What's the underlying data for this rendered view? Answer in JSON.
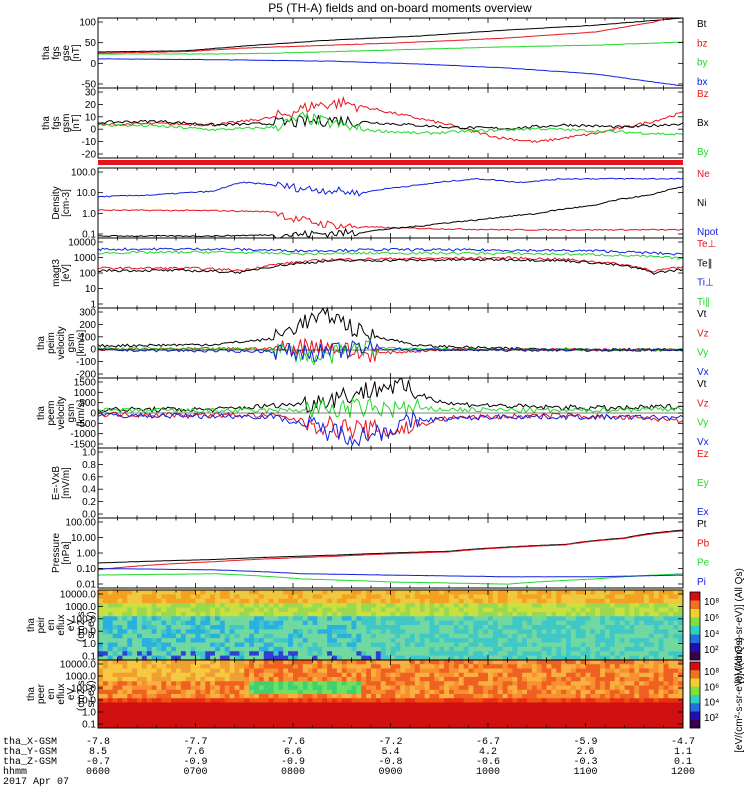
{
  "title": "P5 (TH-A) fields and on-board moments overview",
  "colors": {
    "black": "#000000",
    "red": "#e8141c",
    "green": "#22d82a",
    "blue": "#1020e0"
  },
  "chart_data": [
    {
      "type": "line",
      "id": "fgs_btot",
      "ylabel": [
        "tha",
        "fgs",
        "gse",
        "[nT]"
      ],
      "yticks": [
        "100",
        "50",
        "0",
        "-50"
      ],
      "ylim": [
        -75,
        100
      ],
      "series": [
        {
          "name": "Bt",
          "color": "black",
          "x": [
            0,
            0.15,
            0.25,
            0.4,
            0.55,
            0.7,
            0.85,
            1
          ],
          "y": [
            15,
            18,
            30,
            45,
            55,
            70,
            82,
            100
          ]
        },
        {
          "name": "bz",
          "color": "red",
          "x": [
            0,
            0.15,
            0.25,
            0.4,
            0.55,
            0.7,
            0.85,
            0.95,
            1
          ],
          "y": [
            12,
            16,
            25,
            32,
            40,
            50,
            65,
            90,
            108
          ]
        },
        {
          "name": "by",
          "color": "green",
          "x": [
            0,
            0.2,
            0.3,
            0.5,
            0.7,
            0.85,
            1
          ],
          "y": [
            10,
            10,
            12,
            20,
            28,
            32,
            40
          ]
        },
        {
          "name": "bx",
          "color": "blue",
          "x": [
            0,
            0.1,
            0.25,
            0.4,
            0.55,
            0.7,
            0.85,
            0.95,
            1
          ],
          "y": [
            -2,
            -3,
            -5,
            -8,
            -15,
            -25,
            -40,
            -60,
            -70
          ]
        }
      ]
    },
    {
      "type": "line",
      "id": "fgs_gsm",
      "ylabel": [
        "tha",
        "fgs",
        "gsm",
        "[nT]"
      ],
      "yticks": [
        "30",
        "20",
        "10",
        "0",
        "-10",
        "-20"
      ],
      "ylim": [
        -25,
        32
      ],
      "series": [
        {
          "name": "Bz",
          "color": "red",
          "x": [
            0,
            0.1,
            0.2,
            0.3,
            0.37,
            0.42,
            0.5,
            0.6,
            0.68,
            0.75,
            0.85,
            0.95,
            1
          ],
          "y": [
            2,
            3,
            2,
            8,
            18,
            20,
            12,
            2,
            -8,
            -12,
            -5,
            5,
            12
          ]
        },
        {
          "name": "Bx",
          "color": "black",
          "x": [
            0,
            0.1,
            0.2,
            0.3,
            0.4,
            0.5,
            0.6,
            0.7,
            0.8,
            0.9,
            1
          ],
          "y": [
            4,
            5,
            2,
            3,
            6,
            3,
            0,
            -1,
            2,
            0,
            3
          ]
        },
        {
          "name": "By",
          "color": "green",
          "x": [
            0,
            0.1,
            0.2,
            0.3,
            0.35,
            0.45,
            0.55,
            0.65,
            0.75,
            0.85,
            0.95,
            1
          ],
          "y": [
            2,
            1,
            -2,
            0,
            8,
            -2,
            -5,
            -3,
            -1,
            -3,
            -5,
            -6
          ]
        }
      ]
    },
    {
      "type": "line",
      "id": "density",
      "ylabel": [
        "Density",
        "[cm-3]"
      ],
      "yticks": [
        "100.0",
        "10.0",
        "1.0",
        "0.1"
      ],
      "ylim": [
        0.08,
        200
      ],
      "log": true,
      "series": [
        {
          "name": "Ne",
          "color": "red",
          "x": [
            0,
            0.2,
            0.3,
            0.33,
            0.38,
            0.42,
            0.5,
            0.6,
            0.7,
            0.8,
            0.9,
            1
          ],
          "y": [
            1.8,
            1.7,
            1.5,
            0.7,
            0.4,
            0.3,
            0.25,
            0.22,
            0.2,
            0.2,
            0.2,
            0.2
          ]
        },
        {
          "name": "Ni",
          "color": "black",
          "x": [
            0,
            0.2,
            0.35,
            0.45,
            0.55,
            0.65,
            0.75,
            0.85,
            0.95,
            1
          ],
          "y": [
            0.1,
            0.1,
            0.12,
            0.15,
            0.3,
            0.6,
            1.2,
            3,
            10,
            25
          ]
        },
        {
          "name": "Npot",
          "color": "blue",
          "x": [
            0,
            0.1,
            0.2,
            0.25,
            0.35,
            0.45,
            0.55,
            0.65,
            0.72,
            0.8
          ],
          "y": [
            8,
            10,
            15,
            40,
            20,
            12,
            30,
            60,
            40,
            60
          ]
        }
      ]
    },
    {
      "type": "line",
      "id": "temperature",
      "ylabel": [
        "magt3",
        "[eV]"
      ],
      "yticks": [
        "10000",
        "1000",
        "100",
        "10",
        "1"
      ],
      "ylim": [
        0.7,
        12000
      ],
      "log": true,
      "series": [
        {
          "name": "Te⊥",
          "color": "red",
          "x": [
            0,
            0.15,
            0.25,
            0.4,
            0.55,
            0.7,
            0.8,
            0.88,
            0.95,
            1
          ],
          "y": [
            180,
            180,
            130,
            600,
            700,
            750,
            600,
            350,
            120,
            200
          ]
        },
        {
          "name": "Te∥",
          "color": "black",
          "x": [
            0,
            0.15,
            0.25,
            0.4,
            0.55,
            0.7,
            0.8,
            0.88,
            0.95,
            1
          ],
          "y": [
            130,
            130,
            100,
            500,
            550,
            600,
            500,
            300,
            90,
            150
          ]
        },
        {
          "name": "Ti⊥",
          "color": "blue",
          "x": [
            0,
            0.2,
            0.35,
            0.5,
            0.7,
            0.85,
            1
          ],
          "y": [
            2500,
            2600,
            2000,
            2400,
            2200,
            2000,
            1200
          ]
        },
        {
          "name": "Ti∥",
          "color": "green",
          "x": [
            0,
            0.2,
            0.35,
            0.5,
            0.7,
            0.85,
            1
          ],
          "y": [
            1500,
            1700,
            1300,
            1500,
            1400,
            1200,
            700
          ]
        }
      ]
    },
    {
      "type": "line",
      "id": "ion_velocity",
      "ylabel": [
        "tha",
        "peim",
        "velocity",
        "gsm",
        "[km/s]"
      ],
      "yticks": [
        "300",
        "200",
        "100",
        "0",
        "-100",
        "-200"
      ],
      "ylim": [
        -200,
        300
      ],
      "series": [
        {
          "name": "Vt",
          "color": "black",
          "x": [
            0,
            0.2,
            0.3,
            0.35,
            0.4,
            0.45,
            0.55,
            0.7,
            1
          ],
          "y": [
            30,
            40,
            80,
            200,
            250,
            120,
            30,
            10,
            0
          ]
        },
        {
          "name": "Vz",
          "color": "red",
          "x": [
            0,
            0.3,
            0.38,
            0.45,
            0.6,
            1
          ],
          "y": [
            5,
            10,
            40,
            -30,
            5,
            0
          ]
        },
        {
          "name": "Vy",
          "color": "green",
          "x": [
            0,
            0.3,
            0.38,
            0.45,
            0.6,
            1
          ],
          "y": [
            10,
            5,
            -60,
            20,
            5,
            0
          ]
        },
        {
          "name": "Vx",
          "color": "blue",
          "x": [
            0,
            0.3,
            0.38,
            0.45,
            0.6,
            1
          ],
          "y": [
            0,
            -10,
            -20,
            10,
            0,
            0
          ]
        }
      ]
    },
    {
      "type": "line",
      "id": "electron_velocity",
      "ylabel": [
        "tha",
        "peem",
        "velocity",
        "gsm",
        "[km/s]"
      ],
      "yticks": [
        "1500",
        "1000",
        "500",
        "0",
        "-500",
        "-1000",
        "-1500"
      ],
      "ylim": [
        -1500,
        1500
      ],
      "series": [
        {
          "name": "Vt",
          "color": "black",
          "x": [
            0,
            0.2,
            0.35,
            0.45,
            0.5,
            0.6,
            0.75,
            0.9,
            1
          ],
          "y": [
            150,
            150,
            400,
            900,
            1200,
            400,
            250,
            200,
            300
          ]
        },
        {
          "name": "Vz",
          "color": "red",
          "x": [
            0,
            0.3,
            0.4,
            0.5,
            0.6,
            0.8,
            1
          ],
          "y": [
            -50,
            -100,
            -600,
            -800,
            -200,
            -100,
            -300
          ]
        },
        {
          "name": "Vy",
          "color": "green",
          "x": [
            0,
            0.3,
            0.45,
            0.6,
            0.8,
            1
          ],
          "y": [
            100,
            100,
            200,
            150,
            100,
            200
          ]
        },
        {
          "name": "Vx",
          "color": "blue",
          "x": [
            0,
            0.3,
            0.4,
            0.45,
            0.55,
            0.7,
            1
          ],
          "y": [
            -100,
            -150,
            -800,
            -1000,
            -300,
            -150,
            -200
          ]
        }
      ]
    },
    {
      "type": "line",
      "id": "efield",
      "ylabel": [
        "E=-VxB",
        "[mV/m]"
      ],
      "yticks": [
        "1.0",
        "0.8",
        "0.6",
        "0.4",
        "0.2",
        "0.0"
      ],
      "ylim": [
        0,
        1
      ],
      "series": [
        {
          "name": "Ez",
          "color": "red",
          "x": [],
          "y": []
        },
        {
          "name": "Ey",
          "color": "green",
          "x": [],
          "y": []
        },
        {
          "name": "Ex",
          "color": "blue",
          "x": [],
          "y": []
        }
      ]
    },
    {
      "type": "line",
      "id": "pressure",
      "ylabel": [
        "Pressure",
        "[nPa]"
      ],
      "yticks": [
        "100.00",
        "10.00",
        "1.00",
        "0.10",
        "0.01"
      ],
      "ylim": [
        0.009,
        100
      ],
      "log": true,
      "series": [
        {
          "name": "Pt",
          "color": "black",
          "x": [
            0,
            0.2,
            0.4,
            0.6,
            0.8,
            0.9,
            1
          ],
          "y": [
            0.25,
            0.4,
            0.7,
            1.2,
            3,
            7,
            20
          ]
        },
        {
          "name": "Pb",
          "color": "red",
          "x": [
            0,
            0.2,
            0.4,
            0.6,
            0.8,
            0.9,
            1
          ],
          "y": [
            0.1,
            0.3,
            0.6,
            1.1,
            2.8,
            6.5,
            18
          ]
        },
        {
          "name": "Pe",
          "color": "green",
          "x": [
            0,
            0.2,
            0.35,
            0.5,
            0.7,
            0.85,
            1
          ],
          "y": [
            0.05,
            0.06,
            0.03,
            0.02,
            0.015,
            0.03,
            0.06
          ]
        },
        {
          "name": "Pi",
          "color": "blue",
          "x": [
            0,
            0.2,
            0.35,
            0.5,
            0.7,
            0.85,
            1
          ],
          "y": [
            0.12,
            0.1,
            0.06,
            0.05,
            0.04,
            0.04,
            0.05
          ]
        }
      ]
    },
    {
      "type": "heatmap",
      "id": "ion_spectrogram",
      "ylabel": [
        "tha",
        "peir",
        "en",
        "eflux",
        "eV",
        "(cm2-s-",
        "sr-eV)"
      ],
      "yticks": [
        "10000.0",
        "1000.0",
        "100.0",
        "10.0",
        "1.0",
        "0.1"
      ]
    },
    {
      "type": "heatmap",
      "id": "electron_spectrogram",
      "ylabel": [
        "tha",
        "peer",
        "en",
        "eflux",
        "eV",
        "(cm2-s-",
        "sr-eV)"
      ],
      "yticks": [
        "10000.0",
        "1000.0",
        "100.0",
        "10.0",
        "1.0",
        "0.1"
      ]
    },
    {
      "type": "colorbar",
      "id": "colorbar_ion",
      "ticks": [
        "10⁸",
        "10⁶",
        "10⁴",
        "10²"
      ],
      "label": "[eV/(cm²-s-sr-eV)] (All Qs)"
    },
    {
      "type": "colorbar",
      "id": "colorbar_electron",
      "ticks": [
        "10⁸",
        "10⁶",
        "10⁴",
        "10²"
      ],
      "label": "[eV/(cm²-s-sr-eV)] (All Qs)"
    }
  ],
  "x_axis": {
    "rows": [
      {
        "label": "tha_X-GSM",
        "values": [
          "-7.8",
          "-7.7",
          "-7.6",
          "-7.2",
          "-6.7",
          "-5.9",
          "-4.7"
        ]
      },
      {
        "label": "tha_Y-GSM",
        "values": [
          "8.5",
          "7.6",
          "6.6",
          "5.4",
          "4.2",
          "2.6",
          "1.1"
        ]
      },
      {
        "label": "tha_Z-GSM",
        "values": [
          "-0.7",
          "-0.9",
          "-0.9",
          "-0.8",
          "-0.6",
          "-0.3",
          "0.1"
        ]
      },
      {
        "label": "hhmm",
        "values": [
          "0600",
          "0700",
          "0800",
          "0900",
          "1000",
          "1100",
          "1200"
        ]
      }
    ],
    "date": "2017 Apr 07"
  }
}
